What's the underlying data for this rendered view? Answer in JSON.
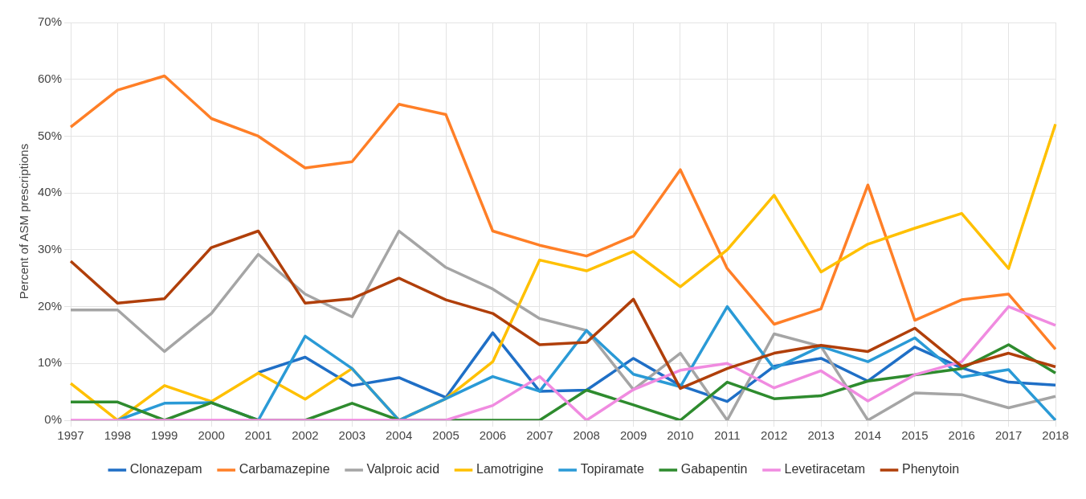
{
  "chart_data": {
    "type": "line",
    "ylabel": "Percent of ASM prescriptions",
    "categories": [
      "1997",
      "1998",
      "1999",
      "2000",
      "2001",
      "2002",
      "2003",
      "2004",
      "2005",
      "2006",
      "2007",
      "2008",
      "2009",
      "2010",
      "2011",
      "2012",
      "2013",
      "2014",
      "2015",
      "2016",
      "2017",
      "2018"
    ],
    "ylim": [
      0,
      70
    ],
    "yticks": [
      {
        "value": 0,
        "label": "0%"
      },
      {
        "value": 10,
        "label": "10%"
      },
      {
        "value": 20,
        "label": "20%"
      },
      {
        "value": 30,
        "label": "30%"
      },
      {
        "value": 40,
        "label": "40%"
      },
      {
        "value": 50,
        "label": "50%"
      },
      {
        "value": 60,
        "label": "60%"
      },
      {
        "value": 70,
        "label": "70%"
      }
    ],
    "grid": true,
    "legend": "bottom",
    "marker": "none",
    "line_style": "solid",
    "series": [
      {
        "name": "Clonazepam",
        "color": "#1f6fc6",
        "values": [
          null,
          null,
          null,
          null,
          8.4,
          11.1,
          6.1,
          7.5,
          4,
          15.4,
          5.1,
          5.3,
          10.9,
          6.1,
          3.3,
          9.5,
          10.9,
          6.9,
          12.9,
          9.2,
          6.7,
          6.2
        ]
      },
      {
        "name": "Carbamazepine",
        "color": "#ff7f27",
        "values": [
          51.6,
          58.1,
          60.6,
          53.1,
          50,
          44.4,
          45.5,
          55.6,
          53.8,
          33.3,
          30.8,
          28.9,
          32.4,
          44.1,
          26.7,
          16.9,
          19.6,
          41.4,
          17.6,
          21.2,
          22.2,
          12.5
        ]
      },
      {
        "name": "Valproic acid",
        "color": "#a5a5a5",
        "values": [
          19.4,
          19.4,
          12.1,
          18.8,
          29.2,
          22.2,
          18.2,
          33.3,
          26.9,
          23.1,
          17.9,
          15.8,
          5.4,
          11.8,
          0,
          15.2,
          13,
          0,
          4.8,
          4.5,
          2.2,
          4.2
        ]
      },
      {
        "name": "Lamotrigine",
        "color": "#ffc000",
        "values": [
          6.5,
          0,
          6.1,
          3.3,
          8.3,
          3.7,
          9.1,
          0,
          3.8,
          10.3,
          28.2,
          26.3,
          29.7,
          23.5,
          30,
          39.6,
          26.1,
          31,
          33.8,
          36.4,
          26.7,
          52.1
        ]
      },
      {
        "name": "Topiramate",
        "color": "#2a9ad6",
        "values": [
          null,
          0,
          3,
          3.1,
          0,
          14.8,
          9.1,
          0,
          3.8,
          7.7,
          5.1,
          15.8,
          8.1,
          5.9,
          20,
          9.1,
          13,
          10.3,
          14.5,
          7.6,
          8.9,
          0
        ]
      },
      {
        "name": "Gabapentin",
        "color": "#2e8b2e",
        "values": [
          3.2,
          3.2,
          0,
          3.1,
          0,
          0,
          3,
          0,
          0,
          0,
          0,
          5.3,
          2.7,
          0,
          6.7,
          3.8,
          4.3,
          6.9,
          8,
          9.1,
          13.3,
          8.3
        ]
      },
      {
        "name": "Levetiracetam",
        "color": "#f08be0",
        "values": [
          0,
          0,
          0,
          0,
          0,
          0,
          0,
          0,
          0,
          2.6,
          7.7,
          0,
          5.4,
          8.8,
          10,
          5.7,
          8.7,
          3.4,
          8,
          10.3,
          20,
          16.7
        ]
      },
      {
        "name": "Phenytoin",
        "color": "#b03f0a",
        "values": [
          28,
          20.6,
          21.4,
          30.4,
          33.3,
          20.6,
          21.4,
          25,
          21.2,
          18.8,
          13.3,
          13.7,
          21.3,
          5.6,
          9.1,
          11.8,
          13.2,
          12.1,
          16.2,
          9.5,
          11.8,
          9.4
        ]
      }
    ]
  }
}
